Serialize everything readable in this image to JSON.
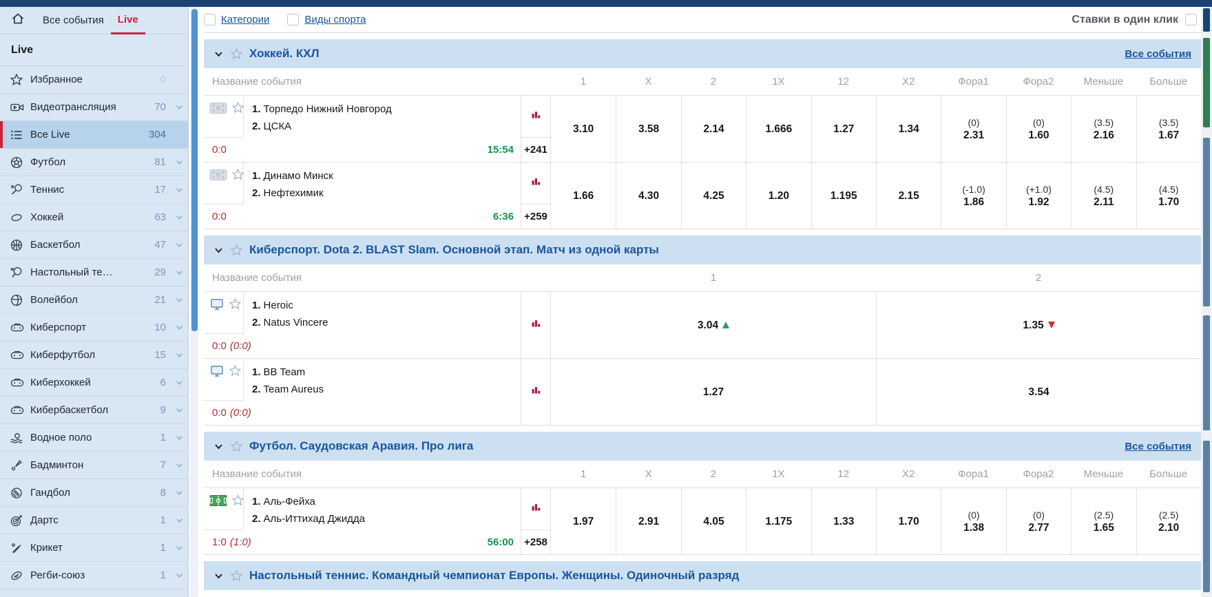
{
  "topbar": {
    "one_click": "Ставки в один клик"
  },
  "filters": [
    {
      "label": "Категории"
    },
    {
      "label": "Виды спорта"
    }
  ],
  "sidebar": {
    "tabs": [
      {
        "label": "Все события",
        "active": false
      },
      {
        "label": "Live",
        "active": true
      }
    ],
    "section_label": "Live",
    "items": [
      {
        "icon": "star-icon",
        "label": "Избранное",
        "count": "0",
        "muted": true,
        "chevron": false,
        "active": false
      },
      {
        "icon": "video-icon",
        "label": "Видеотрансляция",
        "count": "70",
        "muted": false,
        "chevron": true,
        "active": false
      },
      {
        "icon": "list-icon",
        "label": "Все Live",
        "count": "304",
        "muted": false,
        "chevron": false,
        "active": true
      },
      {
        "icon": "football-icon",
        "label": "Футбол",
        "count": "81",
        "muted": false,
        "chevron": true,
        "active": false
      },
      {
        "icon": "tennis-icon",
        "label": "Теннис",
        "count": "17",
        "muted": false,
        "chevron": true,
        "active": false
      },
      {
        "icon": "hockey-icon",
        "label": "Хоккей",
        "count": "63",
        "muted": false,
        "chevron": true,
        "active": false
      },
      {
        "icon": "basketball-icon",
        "label": "Баскетбол",
        "count": "47",
        "muted": false,
        "chevron": true,
        "active": false
      },
      {
        "icon": "table-tennis-icon",
        "label": "Настольный те…",
        "count": "29",
        "muted": false,
        "chevron": true,
        "active": false
      },
      {
        "icon": "volleyball-icon",
        "label": "Волейбол",
        "count": "21",
        "muted": false,
        "chevron": true,
        "active": false
      },
      {
        "icon": "gamepad-icon",
        "label": "Киберспорт",
        "count": "10",
        "muted": false,
        "chevron": true,
        "active": false
      },
      {
        "icon": "gamepad-icon",
        "label": "Киберфутбол",
        "count": "15",
        "muted": false,
        "chevron": true,
        "active": false
      },
      {
        "icon": "gamepad-icon",
        "label": "Киберхоккей",
        "count": "6",
        "muted": false,
        "chevron": true,
        "active": false
      },
      {
        "icon": "gamepad-icon",
        "label": "Кибербаскетбол",
        "count": "9",
        "muted": false,
        "chevron": true,
        "active": false
      },
      {
        "icon": "waterpolo-icon",
        "label": "Водное поло",
        "count": "1",
        "muted": false,
        "chevron": true,
        "active": false
      },
      {
        "icon": "badminton-icon",
        "label": "Бадминтон",
        "count": "7",
        "muted": false,
        "chevron": true,
        "active": false
      },
      {
        "icon": "handball-icon",
        "label": "Гандбол",
        "count": "8",
        "muted": false,
        "chevron": true,
        "active": false
      },
      {
        "icon": "darts-icon",
        "label": "Дартс",
        "count": "1",
        "muted": false,
        "chevron": true,
        "active": false
      },
      {
        "icon": "cricket-icon",
        "label": "Крикет",
        "count": "1",
        "muted": false,
        "chevron": true,
        "active": false
      },
      {
        "icon": "rugby-icon",
        "label": "Регби-союз",
        "count": "1",
        "muted": false,
        "chevron": true,
        "active": false
      }
    ]
  },
  "table": {
    "name_header": "Название события"
  },
  "sections": [
    {
      "title": "Хоккей. КХЛ",
      "link": "Все события",
      "wide": false,
      "columns": [
        "1",
        "X",
        "2",
        "1X",
        "12",
        "X2",
        "Фора1",
        "Фора2",
        "Меньше",
        "Больше"
      ],
      "rows": [
        {
          "icon": "hockey-rink-icon",
          "teams": [
            "Торпедо Нижний Новгород",
            "ЦСКА"
          ],
          "score": "0:0",
          "period": "",
          "time": "15:54",
          "more": "+241",
          "odds": [
            {
              "v": "3.10"
            },
            {
              "v": "3.58"
            },
            {
              "v": "2.14"
            },
            {
              "v": "1.666"
            },
            {
              "v": "1.27"
            },
            {
              "v": "1.34"
            },
            {
              "h": "(0)",
              "v": "2.31"
            },
            {
              "h": "(0)",
              "v": "1.60"
            },
            {
              "h": "(3.5)",
              "v": "2.16"
            },
            {
              "h": "(3.5)",
              "v": "1.67"
            }
          ]
        },
        {
          "icon": "hockey-rink-icon",
          "teams": [
            "Динамо Минск",
            "Нефтехимик"
          ],
          "score": "0:0",
          "period": "",
          "time": "6:36",
          "more": "+259",
          "odds": [
            {
              "v": "1.66"
            },
            {
              "v": "4.30"
            },
            {
              "v": "4.25"
            },
            {
              "v": "1.20"
            },
            {
              "v": "1.195"
            },
            {
              "v": "2.15"
            },
            {
              "h": "(-1.0)",
              "v": "1.86"
            },
            {
              "h": "(+1.0)",
              "v": "1.92"
            },
            {
              "h": "(4.5)",
              "v": "2.11"
            },
            {
              "h": "(4.5)",
              "v": "1.70"
            }
          ]
        }
      ]
    },
    {
      "title": "Киберспорт. Dota 2. BLAST Slam. Основной этап. Матч из одной карты",
      "link": "",
      "wide": true,
      "columns": [
        "1",
        "2"
      ],
      "rows": [
        {
          "icon": "monitor-icon",
          "teams": [
            "Heroic",
            "Natus Vincere"
          ],
          "score": "0:0",
          "period": "(0:0)",
          "time": "",
          "more": "",
          "odds": [
            {
              "v": "3.04",
              "dir": "up"
            },
            {
              "v": "1.35",
              "dir": "down"
            }
          ]
        },
        {
          "icon": "monitor-icon",
          "teams": [
            "BB Team",
            "Team Aureus"
          ],
          "score": "0:0",
          "period": "(0:0)",
          "time": "",
          "more": "",
          "odds": [
            {
              "v": "1.27"
            },
            {
              "v": "3.54"
            }
          ]
        }
      ]
    },
    {
      "title": "Футбол. Саудовская Аравия. Про лига",
      "link": "Все события",
      "wide": false,
      "columns": [
        "1",
        "X",
        "2",
        "1X",
        "12",
        "X2",
        "Фора1",
        "Фора2",
        "Меньше",
        "Больше"
      ],
      "rows": [
        {
          "icon": "pitch-icon",
          "teams": [
            "Аль-Фейха",
            "Аль-Иттихад Джидда"
          ],
          "score": "1:0",
          "period": "(1:0)",
          "time": "56:00",
          "more": "+258",
          "odds": [
            {
              "v": "1.97"
            },
            {
              "v": "2.91"
            },
            {
              "v": "4.05"
            },
            {
              "v": "1.175"
            },
            {
              "v": "1.33"
            },
            {
              "v": "1.70"
            },
            {
              "h": "(0)",
              "v": "1.38"
            },
            {
              "h": "(0)",
              "v": "2.77"
            },
            {
              "h": "(2.5)",
              "v": "1.65"
            },
            {
              "h": "(2.5)",
              "v": "2.10"
            }
          ]
        }
      ]
    },
    {
      "title": "Настольный теннис. Командный чемпионат Европы. Женщины. Одиночный разряд",
      "link": "",
      "wide": false,
      "columns": [],
      "rows": []
    }
  ],
  "colors": {
    "navy": "#1a4374",
    "accent_red": "#cf2339",
    "link_blue": "#19549b",
    "score_red": "#ab2f2f",
    "time_green": "#169150",
    "up_green": "#27a05c",
    "down_red": "#d42b2b",
    "chart_crimson": "#a81c4d",
    "rail_green": "#2f7d52",
    "rail_slate": "#5b80a5"
  }
}
